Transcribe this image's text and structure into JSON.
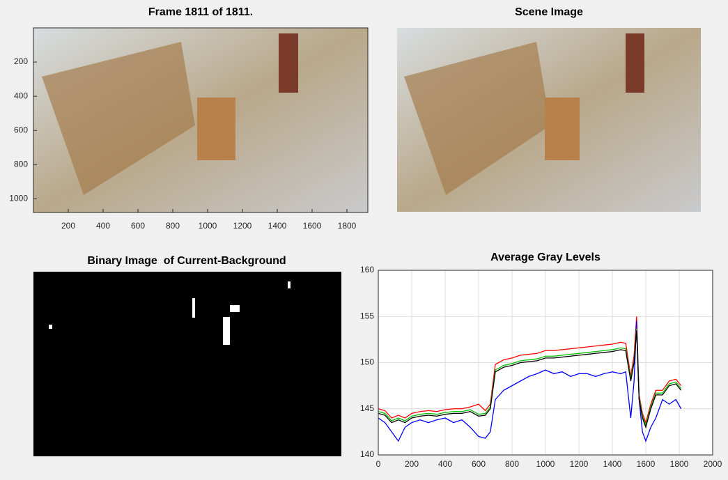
{
  "image_panels": [
    {
      "title": "Frame 1811 of 1811.",
      "xlim": [
        0,
        1920
      ],
      "ylim": [
        0,
        1080
      ],
      "xticks": [
        200,
        400,
        600,
        800,
        1000,
        1200,
        1400,
        1600,
        1800
      ],
      "yticks": [
        200,
        400,
        600,
        800,
        1000
      ]
    },
    {
      "title": "Scene Image"
    },
    {
      "title": "Binary Image  of Current-Background"
    }
  ],
  "chart_data": {
    "type": "line",
    "title": "Average Gray Levels",
    "x": [
      0,
      40,
      80,
      120,
      160,
      200,
      250,
      300,
      350,
      400,
      450,
      500,
      550,
      600,
      640,
      670,
      700,
      750,
      800,
      850,
      900,
      950,
      1000,
      1050,
      1100,
      1150,
      1200,
      1250,
      1300,
      1350,
      1400,
      1450,
      1480,
      1510,
      1530,
      1545,
      1560,
      1580,
      1600,
      1630,
      1660,
      1700,
      1740,
      1780,
      1811
    ],
    "series": [
      {
        "color": "#ff0000",
        "values": [
          145,
          144.8,
          144,
          144.3,
          144,
          144.5,
          144.7,
          144.8,
          144.7,
          144.9,
          145,
          145,
          145.2,
          145.5,
          144.8,
          145.5,
          149.8,
          150.3,
          150.5,
          150.8,
          150.9,
          151,
          151.3,
          151.3,
          151.4,
          151.5,
          151.6,
          151.7,
          151.8,
          151.9,
          152,
          152.2,
          152.1,
          148.5,
          150.8,
          155,
          146.5,
          144.5,
          143.5,
          145.5,
          147,
          147,
          148,
          148.2,
          147.5
        ]
      },
      {
        "color": "#0000ff",
        "values": [
          144,
          143.5,
          142.5,
          141.5,
          143,
          143.5,
          143.8,
          143.5,
          143.8,
          144,
          143.5,
          143.8,
          143,
          142,
          141.8,
          142.5,
          146,
          147,
          147.5,
          148,
          148.5,
          148.8,
          149.2,
          148.8,
          149,
          148.5,
          148.8,
          148.8,
          148.5,
          148.8,
          149,
          148.8,
          149,
          144,
          148,
          154.5,
          146,
          142.5,
          141.5,
          143,
          144,
          146,
          145.5,
          146,
          145
        ]
      },
      {
        "color": "#00c000",
        "values": [
          144.7,
          144.5,
          143.7,
          144,
          143.7,
          144.2,
          144.4,
          144.5,
          144.4,
          144.6,
          144.7,
          144.7,
          144.9,
          144.4,
          144.5,
          145.2,
          149.2,
          149.7,
          149.9,
          150.2,
          150.3,
          150.4,
          150.7,
          150.7,
          150.8,
          150.9,
          151,
          151.1,
          151.2,
          151.3,
          151.4,
          151.6,
          151.5,
          148.2,
          150.2,
          153.7,
          146.2,
          144.2,
          143.2,
          145.2,
          146.7,
          146.7,
          147.7,
          147.9,
          147.2
        ]
      },
      {
        "color": "#000000",
        "values": [
          144.5,
          144.3,
          143.5,
          143.8,
          143.5,
          144,
          144.2,
          144.3,
          144.2,
          144.4,
          144.5,
          144.5,
          144.7,
          144.2,
          144.3,
          145,
          149,
          149.5,
          149.7,
          150,
          150.1,
          150.2,
          150.5,
          150.5,
          150.6,
          150.7,
          150.8,
          150.9,
          151,
          151.1,
          151.2,
          151.4,
          151.3,
          148,
          150,
          153.5,
          146,
          144,
          143,
          145,
          146.5,
          146.5,
          147.5,
          147.7,
          147
        ]
      }
    ],
    "xlim": [
      0,
      2000
    ],
    "ylim": [
      140,
      160
    ],
    "xticks": [
      0,
      200,
      400,
      600,
      800,
      1000,
      1200,
      1400,
      1600,
      1800,
      2000
    ],
    "yticks": [
      140,
      145,
      150,
      155,
      160
    ],
    "grid": true
  }
}
